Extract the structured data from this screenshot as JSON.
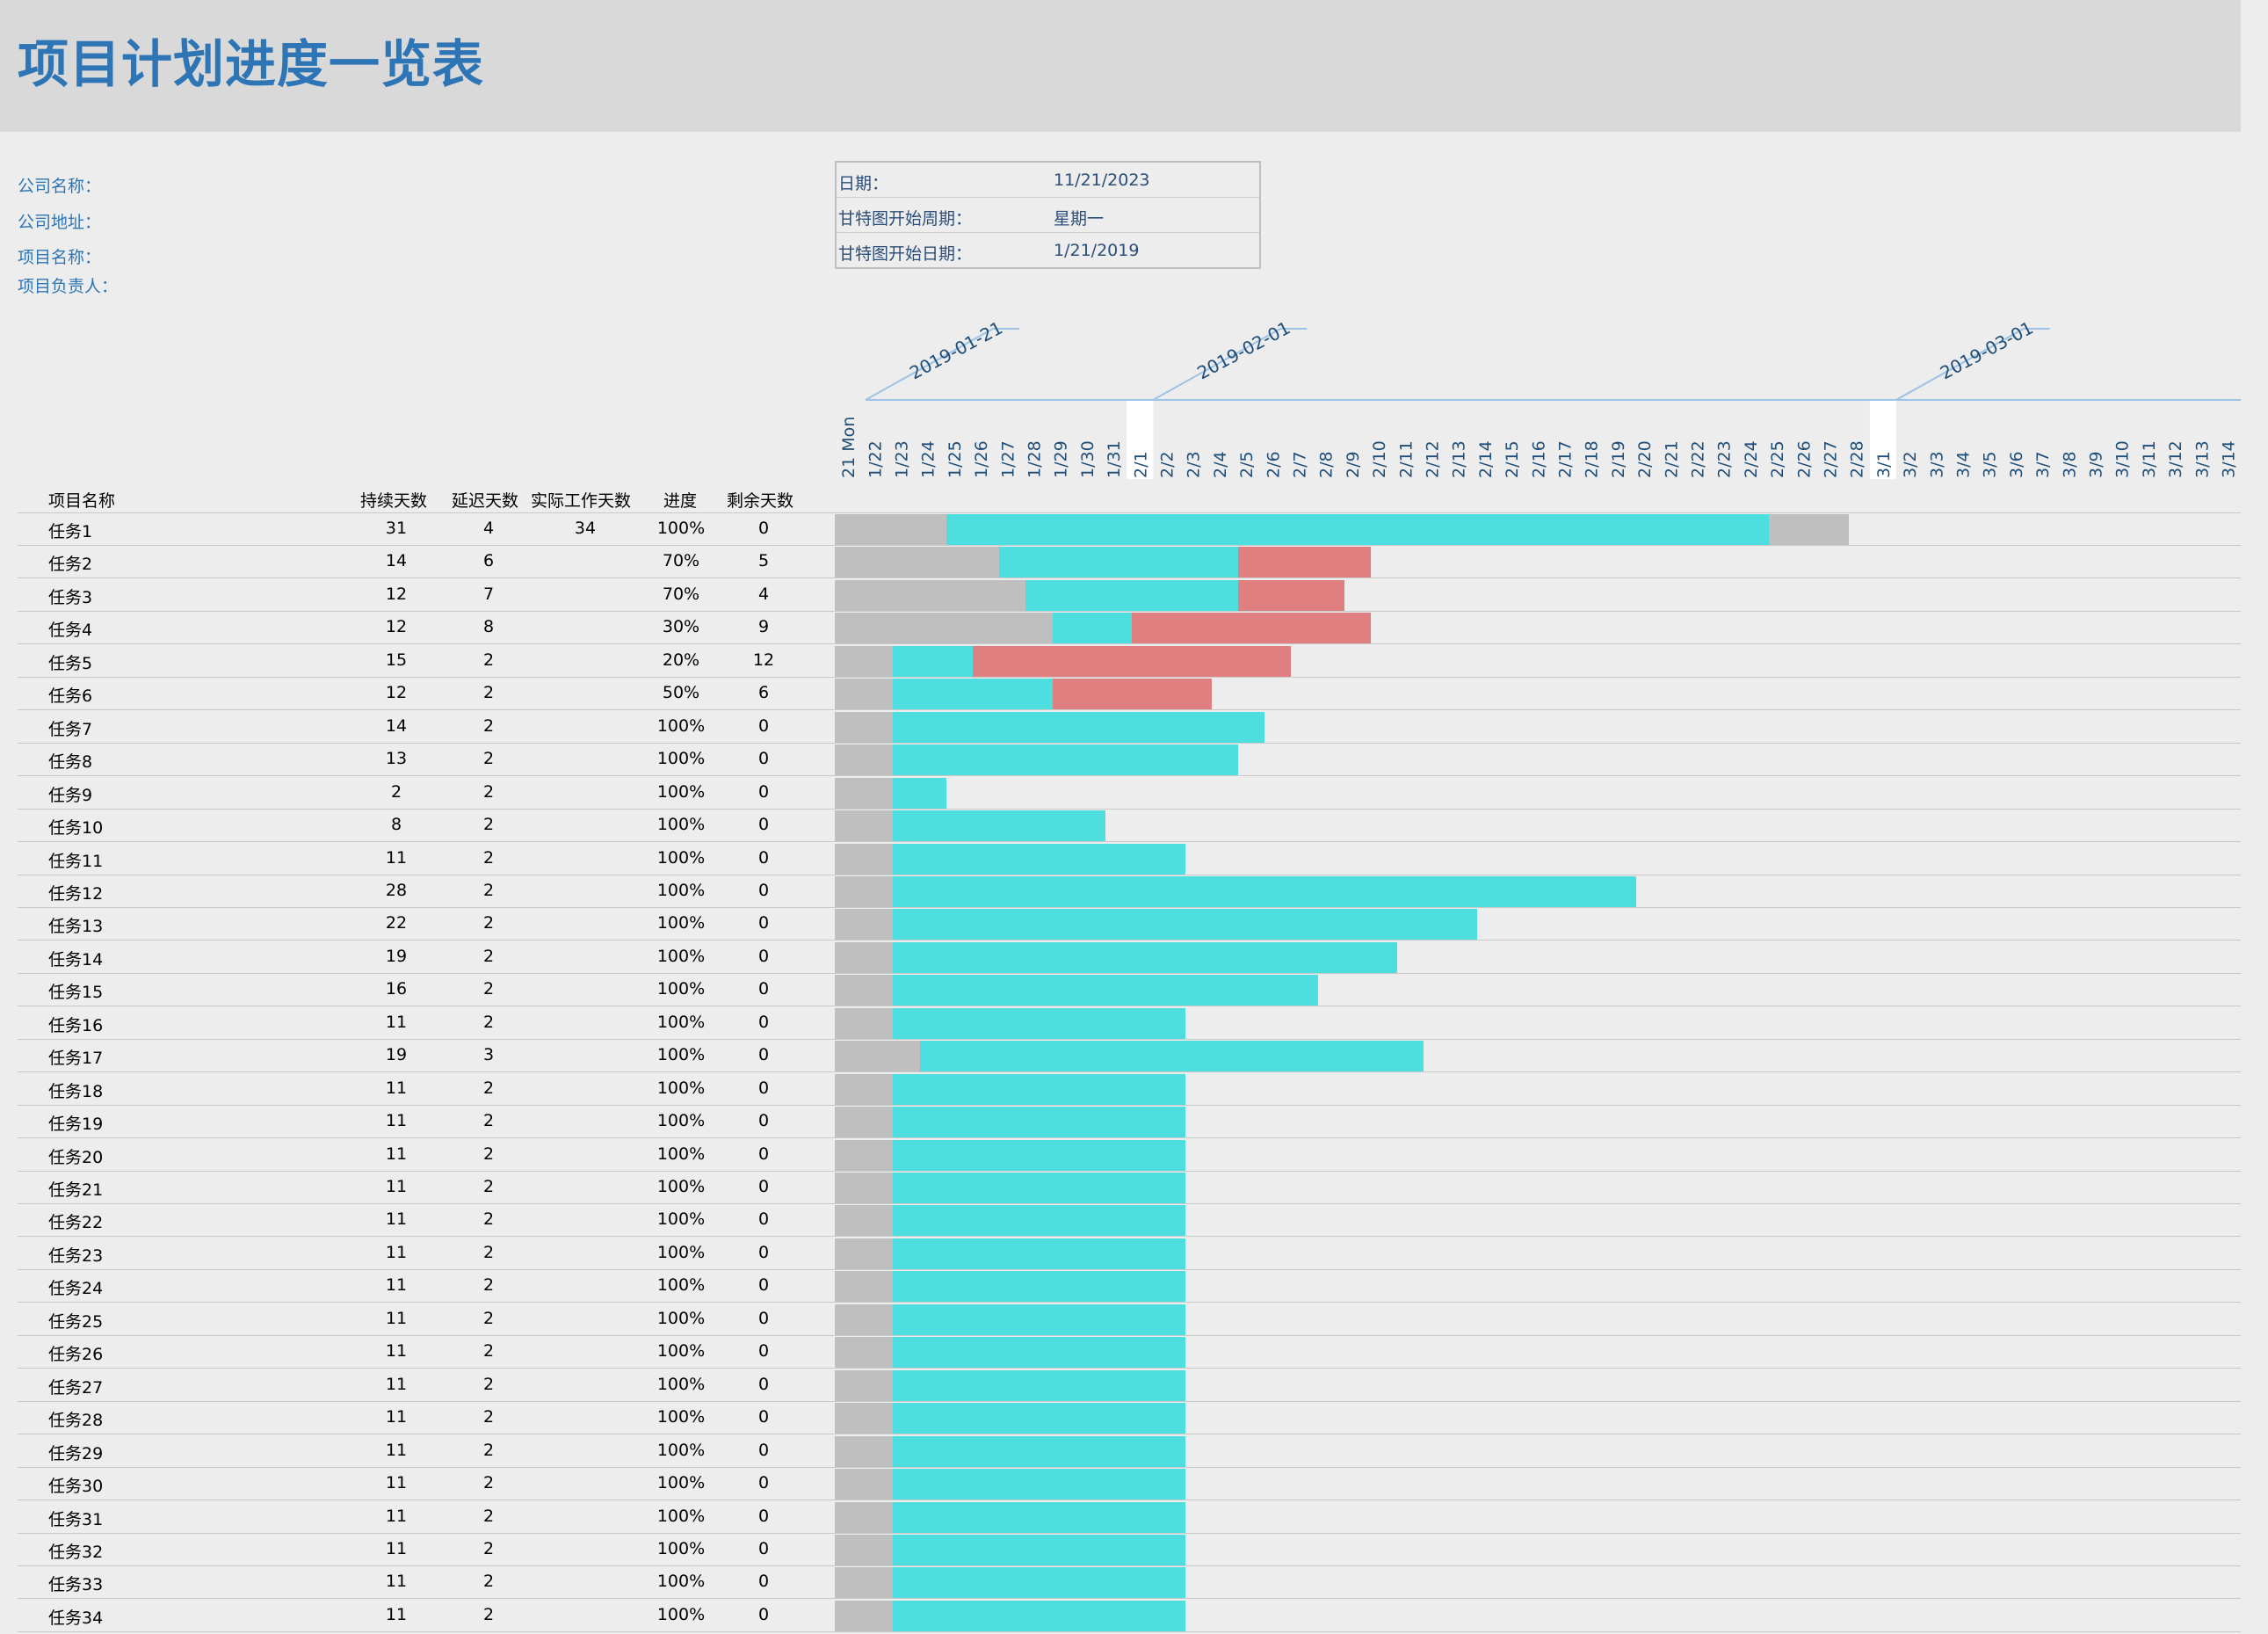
{
  "title": "项目计划进度一览表",
  "info": {
    "company_name": "公司名称：",
    "company_address": "公司地址：",
    "project_name": "项目名称：",
    "project_owner": "项目负责人："
  },
  "date_box": {
    "date_label": "日期：",
    "date_value": "11/21/2023",
    "gantt_week_label": "甘特图开始周期：",
    "gantt_week_value": "星期一",
    "gantt_start_label": "甘特图开始日期：",
    "gantt_start_value": "1/21/2019"
  },
  "columns": {
    "name": "项目名称",
    "duration": "持续天数",
    "delay": "延迟天数",
    "actual": "实际工作天数",
    "progress": "进度",
    "remaining": "剩余天数"
  },
  "timeline": {
    "months": [
      "2019-01-21",
      "2019-02-01",
      "2019-03-01"
    ],
    "days": [
      "21 Mon",
      "1/22",
      "1/23",
      "1/24",
      "1/25",
      "1/26",
      "1/27",
      "1/28",
      "1/29",
      "1/30",
      "1/31",
      "2/1",
      "2/2",
      "2/3",
      "2/4",
      "2/5",
      "2/6",
      "2/7",
      "2/8",
      "2/9",
      "2/10",
      "2/11",
      "2/12",
      "2/13",
      "2/14",
      "2/15",
      "2/16",
      "2/17",
      "2/18",
      "2/19",
      "2/20",
      "2/21",
      "2/22",
      "2/23",
      "2/24",
      "2/25",
      "2/26",
      "2/27",
      "2/28",
      "3/1",
      "3/2",
      "3/3",
      "3/4",
      "3/5",
      "3/6",
      "3/7",
      "3/8",
      "3/9",
      "3/10",
      "3/11",
      "3/12",
      "3/13",
      "3/14"
    ]
  },
  "colors": {
    "delay": "#bfbfbf",
    "done": "#4ddfe0",
    "overdue": "#e07f7f",
    "title": "#2e75b6"
  },
  "tasks": [
    {
      "name": "任务1",
      "duration": "31",
      "delay": "4",
      "actual": "34",
      "progress": "100%",
      "remaining": "0",
      "bars": [
        [
          0,
          4.2,
          "gray"
        ],
        [
          4.2,
          35.2,
          "cyan"
        ],
        [
          35.2,
          38.2,
          "gray"
        ]
      ]
    },
    {
      "name": "任务2",
      "duration": "14",
      "delay": "6",
      "actual": "",
      "progress": "70%",
      "remaining": "5",
      "bars": [
        [
          0,
          6.2,
          "gray"
        ],
        [
          6.2,
          15.2,
          "cyan"
        ],
        [
          15.2,
          20.2,
          "red"
        ]
      ]
    },
    {
      "name": "任务3",
      "duration": "12",
      "delay": "7",
      "actual": "",
      "progress": "70%",
      "remaining": "4",
      "bars": [
        [
          0,
          7.2,
          "gray"
        ],
        [
          7.2,
          15.2,
          "cyan"
        ],
        [
          15.2,
          19.2,
          "red"
        ]
      ]
    },
    {
      "name": "任务4",
      "duration": "12",
      "delay": "8",
      "actual": "",
      "progress": "30%",
      "remaining": "9",
      "bars": [
        [
          0,
          8.2,
          "gray"
        ],
        [
          8.2,
          11.2,
          "cyan"
        ],
        [
          11.2,
          20.2,
          "red"
        ]
      ]
    },
    {
      "name": "任务5",
      "duration": "15",
      "delay": "2",
      "actual": "",
      "progress": "20%",
      "remaining": "12",
      "bars": [
        [
          0,
          2.2,
          "gray"
        ],
        [
          2.2,
          5.2,
          "cyan"
        ],
        [
          5.2,
          17.2,
          "red"
        ]
      ]
    },
    {
      "name": "任务6",
      "duration": "12",
      "delay": "2",
      "actual": "",
      "progress": "50%",
      "remaining": "6",
      "bars": [
        [
          0,
          2.2,
          "gray"
        ],
        [
          2.2,
          8.2,
          "cyan"
        ],
        [
          8.2,
          14.2,
          "red"
        ]
      ]
    },
    {
      "name": "任务7",
      "duration": "14",
      "delay": "2",
      "actual": "",
      "progress": "100%",
      "remaining": "0",
      "bars": [
        [
          0,
          2.2,
          "gray"
        ],
        [
          2.2,
          16.2,
          "cyan"
        ]
      ]
    },
    {
      "name": "任务8",
      "duration": "13",
      "delay": "2",
      "actual": "",
      "progress": "100%",
      "remaining": "0",
      "bars": [
        [
          0,
          2.2,
          "gray"
        ],
        [
          2.2,
          15.2,
          "cyan"
        ]
      ]
    },
    {
      "name": "任务9",
      "duration": "2",
      "delay": "2",
      "actual": "",
      "progress": "100%",
      "remaining": "0",
      "bars": [
        [
          0,
          2.2,
          "gray"
        ],
        [
          2.2,
          4.2,
          "cyan"
        ]
      ]
    },
    {
      "name": "任务10",
      "duration": "8",
      "delay": "2",
      "actual": "",
      "progress": "100%",
      "remaining": "0",
      "bars": [
        [
          0,
          2.2,
          "gray"
        ],
        [
          2.2,
          10.2,
          "cyan"
        ]
      ]
    },
    {
      "name": "任务11",
      "duration": "11",
      "delay": "2",
      "actual": "",
      "progress": "100%",
      "remaining": "0",
      "bars": [
        [
          0,
          2.2,
          "gray"
        ],
        [
          2.2,
          13.2,
          "cyan"
        ]
      ]
    },
    {
      "name": "任务12",
      "duration": "28",
      "delay": "2",
      "actual": "",
      "progress": "100%",
      "remaining": "0",
      "bars": [
        [
          0,
          2.2,
          "gray"
        ],
        [
          2.2,
          30.2,
          "cyan"
        ]
      ]
    },
    {
      "name": "任务13",
      "duration": "22",
      "delay": "2",
      "actual": "",
      "progress": "100%",
      "remaining": "0",
      "bars": [
        [
          0,
          2.2,
          "gray"
        ],
        [
          2.2,
          24.2,
          "cyan"
        ]
      ]
    },
    {
      "name": "任务14",
      "duration": "19",
      "delay": "2",
      "actual": "",
      "progress": "100%",
      "remaining": "0",
      "bars": [
        [
          0,
          2.2,
          "gray"
        ],
        [
          2.2,
          21.2,
          "cyan"
        ]
      ]
    },
    {
      "name": "任务15",
      "duration": "16",
      "delay": "2",
      "actual": "",
      "progress": "100%",
      "remaining": "0",
      "bars": [
        [
          0,
          2.2,
          "gray"
        ],
        [
          2.2,
          18.2,
          "cyan"
        ]
      ]
    },
    {
      "name": "任务16",
      "duration": "11",
      "delay": "2",
      "actual": "",
      "progress": "100%",
      "remaining": "0",
      "bars": [
        [
          0,
          2.2,
          "gray"
        ],
        [
          2.2,
          13.2,
          "cyan"
        ]
      ]
    },
    {
      "name": "任务17",
      "duration": "19",
      "delay": "3",
      "actual": "",
      "progress": "100%",
      "remaining": "0",
      "bars": [
        [
          0,
          3.2,
          "gray"
        ],
        [
          3.2,
          22.2,
          "cyan"
        ]
      ]
    },
    {
      "name": "任务18",
      "duration": "11",
      "delay": "2",
      "actual": "",
      "progress": "100%",
      "remaining": "0",
      "bars": [
        [
          0,
          2.2,
          "gray"
        ],
        [
          2.2,
          13.2,
          "cyan"
        ]
      ]
    },
    {
      "name": "任务19",
      "duration": "11",
      "delay": "2",
      "actual": "",
      "progress": "100%",
      "remaining": "0",
      "bars": [
        [
          0,
          2.2,
          "gray"
        ],
        [
          2.2,
          13.2,
          "cyan"
        ]
      ]
    },
    {
      "name": "任务20",
      "duration": "11",
      "delay": "2",
      "actual": "",
      "progress": "100%",
      "remaining": "0",
      "bars": [
        [
          0,
          2.2,
          "gray"
        ],
        [
          2.2,
          13.2,
          "cyan"
        ]
      ]
    },
    {
      "name": "任务21",
      "duration": "11",
      "delay": "2",
      "actual": "",
      "progress": "100%",
      "remaining": "0",
      "bars": [
        [
          0,
          2.2,
          "gray"
        ],
        [
          2.2,
          13.2,
          "cyan"
        ]
      ]
    },
    {
      "name": "任务22",
      "duration": "11",
      "delay": "2",
      "actual": "",
      "progress": "100%",
      "remaining": "0",
      "bars": [
        [
          0,
          2.2,
          "gray"
        ],
        [
          2.2,
          13.2,
          "cyan"
        ]
      ]
    },
    {
      "name": "任务23",
      "duration": "11",
      "delay": "2",
      "actual": "",
      "progress": "100%",
      "remaining": "0",
      "bars": [
        [
          0,
          2.2,
          "gray"
        ],
        [
          2.2,
          13.2,
          "cyan"
        ]
      ]
    },
    {
      "name": "任务24",
      "duration": "11",
      "delay": "2",
      "actual": "",
      "progress": "100%",
      "remaining": "0",
      "bars": [
        [
          0,
          2.2,
          "gray"
        ],
        [
          2.2,
          13.2,
          "cyan"
        ]
      ]
    },
    {
      "name": "任务25",
      "duration": "11",
      "delay": "2",
      "actual": "",
      "progress": "100%",
      "remaining": "0",
      "bars": [
        [
          0,
          2.2,
          "gray"
        ],
        [
          2.2,
          13.2,
          "cyan"
        ]
      ]
    },
    {
      "name": "任务26",
      "duration": "11",
      "delay": "2",
      "actual": "",
      "progress": "100%",
      "remaining": "0",
      "bars": [
        [
          0,
          2.2,
          "gray"
        ],
        [
          2.2,
          13.2,
          "cyan"
        ]
      ]
    },
    {
      "name": "任务27",
      "duration": "11",
      "delay": "2",
      "actual": "",
      "progress": "100%",
      "remaining": "0",
      "bars": [
        [
          0,
          2.2,
          "gray"
        ],
        [
          2.2,
          13.2,
          "cyan"
        ]
      ]
    },
    {
      "name": "任务28",
      "duration": "11",
      "delay": "2",
      "actual": "",
      "progress": "100%",
      "remaining": "0",
      "bars": [
        [
          0,
          2.2,
          "gray"
        ],
        [
          2.2,
          13.2,
          "cyan"
        ]
      ]
    },
    {
      "name": "任务29",
      "duration": "11",
      "delay": "2",
      "actual": "",
      "progress": "100%",
      "remaining": "0",
      "bars": [
        [
          0,
          2.2,
          "gray"
        ],
        [
          2.2,
          13.2,
          "cyan"
        ]
      ]
    },
    {
      "name": "任务30",
      "duration": "11",
      "delay": "2",
      "actual": "",
      "progress": "100%",
      "remaining": "0",
      "bars": [
        [
          0,
          2.2,
          "gray"
        ],
        [
          2.2,
          13.2,
          "cyan"
        ]
      ]
    },
    {
      "name": "任务31",
      "duration": "11",
      "delay": "2",
      "actual": "",
      "progress": "100%",
      "remaining": "0",
      "bars": [
        [
          0,
          2.2,
          "gray"
        ],
        [
          2.2,
          13.2,
          "cyan"
        ]
      ]
    },
    {
      "name": "任务32",
      "duration": "11",
      "delay": "2",
      "actual": "",
      "progress": "100%",
      "remaining": "0",
      "bars": [
        [
          0,
          2.2,
          "gray"
        ],
        [
          2.2,
          13.2,
          "cyan"
        ]
      ]
    },
    {
      "name": "任务33",
      "duration": "11",
      "delay": "2",
      "actual": "",
      "progress": "100%",
      "remaining": "0",
      "bars": [
        [
          0,
          2.2,
          "gray"
        ],
        [
          2.2,
          13.2,
          "cyan"
        ]
      ]
    },
    {
      "name": "任务34",
      "duration": "11",
      "delay": "2",
      "actual": "",
      "progress": "100%",
      "remaining": "0",
      "bars": [
        [
          0,
          2.2,
          "gray"
        ],
        [
          2.2,
          13.2,
          "cyan"
        ]
      ]
    }
  ]
}
